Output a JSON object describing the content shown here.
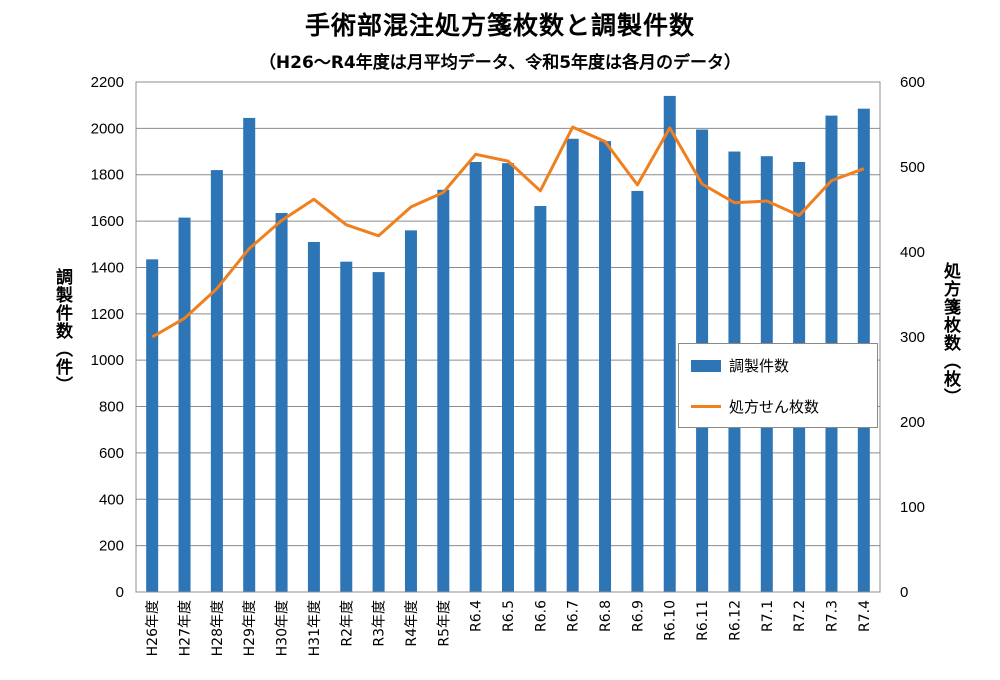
{
  "chart_data": {
    "type": "bar+line",
    "title": "手術部混注処方箋枚数と調製件数",
    "subtitle": "（H26～R4年度は月平均データ、令和5年度は各月のデータ）",
    "categories": [
      "H26年度",
      "H27年度",
      "H28年度",
      "H29年度",
      "H30年度",
      "H31年度",
      "R2年度",
      "R3年度",
      "R4年度",
      "R5年度",
      "R6.4",
      "R6.5",
      "R6.6",
      "R6.7",
      "R6.8",
      "R6.9",
      "R6.10",
      "R6.11",
      "R6.12",
      "R7.1",
      "R7.2",
      "R7.3",
      "R7.4"
    ],
    "series": [
      {
        "name": "調製件数",
        "kind": "bar",
        "axis": "left",
        "color": "#2E75B6",
        "values": [
          1435,
          1615,
          1820,
          2045,
          1635,
          1510,
          1425,
          1380,
          1560,
          1735,
          1855,
          1850,
          1665,
          1955,
          1945,
          1730,
          2140,
          1995,
          1900,
          1880,
          1855,
          2055,
          2085
        ]
      },
      {
        "name": "処方せん枚数",
        "kind": "line",
        "axis": "right",
        "color": "#F07F1E",
        "values": [
          300,
          322,
          357,
          404,
          437,
          462,
          432,
          419,
          453,
          470,
          515,
          507,
          472,
          547,
          530,
          479,
          546,
          480,
          458,
          460,
          443,
          484,
          498
        ]
      }
    ],
    "y_left": {
      "label": "調製件数（件）",
      "min": 0,
      "max": 2200,
      "step": 200
    },
    "y_right": {
      "label": "処方箋枚数（枚）",
      "min": 0,
      "max": 600,
      "step": 100
    },
    "grid": true,
    "legend_position": "right"
  }
}
